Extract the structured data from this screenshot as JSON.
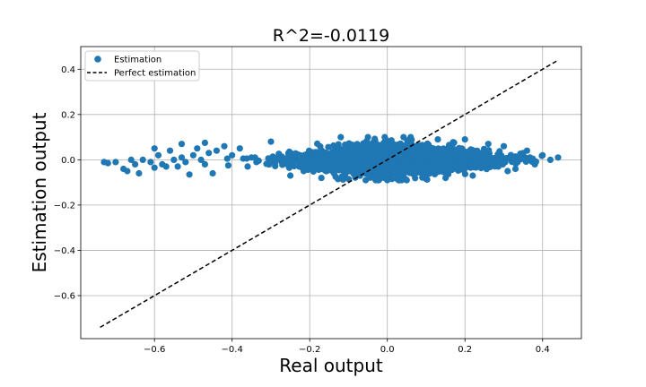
{
  "chart_data": {
    "type": "scatter",
    "title": "R^2=-0.0119",
    "xlabel": "Real output",
    "ylabel": "Estimation output",
    "xlim": [
      -0.79,
      0.5
    ],
    "ylim": [
      -0.79,
      0.5
    ],
    "xticks": [
      -0.6,
      -0.4,
      -0.2,
      0.0,
      0.2,
      0.4
    ],
    "yticks": [
      -0.6,
      -0.4,
      -0.2,
      0.0,
      0.2,
      0.4
    ],
    "xtick_labels": [
      "−0.6",
      "−0.4",
      "−0.2",
      "0.0",
      "0.2",
      "0.4"
    ],
    "ytick_labels": [
      "−0.6",
      "−0.4",
      "−0.2",
      "0.0",
      "0.2",
      "0.4"
    ],
    "grid": true,
    "legend_position": "upper-left",
    "series": [
      {
        "name": "Estimation",
        "kind": "scatter",
        "color": "#1f77b4",
        "x_range": [
          -0.74,
          0.45
        ],
        "y_center": 0.0,
        "points": [
          [
            -0.73,
            -0.01
          ],
          [
            -0.72,
            -0.015
          ],
          [
            -0.7,
            -0.01
          ],
          [
            -0.68,
            -0.04
          ],
          [
            -0.67,
            -0.05
          ],
          [
            -0.65,
            -0.02
          ],
          [
            -0.64,
            -0.06
          ],
          [
            -0.63,
            0.0
          ],
          [
            -0.61,
            -0.01
          ],
          [
            -0.6,
            -0.035
          ],
          [
            -0.59,
            0.02
          ],
          [
            -0.58,
            -0.02
          ],
          [
            -0.57,
            -0.03
          ],
          [
            -0.56,
            0.04
          ],
          [
            -0.55,
            0.0
          ],
          [
            -0.54,
            -0.03
          ],
          [
            -0.53,
            0.01
          ],
          [
            -0.52,
            -0.01
          ],
          [
            -0.5,
            0.02
          ],
          [
            -0.49,
            0.05
          ],
          [
            -0.48,
            0.0
          ],
          [
            -0.47,
            -0.02
          ],
          [
            -0.46,
            0.03
          ],
          [
            -0.45,
            -0.06
          ],
          [
            -0.44,
            0.04
          ],
          [
            -0.42,
            0.06
          ],
          [
            -0.41,
            -0.025
          ],
          [
            -0.4,
            0.02
          ],
          [
            -0.38,
            0.05
          ],
          [
            -0.36,
            -0.03
          ],
          [
            -0.35,
            0.01
          ],
          [
            -0.6,
            0.05
          ],
          [
            -0.53,
            0.07
          ],
          [
            -0.66,
            0.0
          ],
          [
            -0.51,
            -0.065
          ],
          [
            -0.47,
            0.075
          ],
          [
            -0.12,
            0.1
          ],
          [
            -0.05,
            0.1
          ],
          [
            0.06,
            0.1
          ],
          [
            0.13,
            0.09
          ],
          [
            0.2,
            0.09
          ],
          [
            0.05,
            -0.09
          ],
          [
            -0.03,
            -0.09
          ],
          [
            -0.1,
            -0.085
          ],
          [
            0.15,
            -0.08
          ],
          [
            -0.17,
            -0.08
          ],
          [
            0.22,
            -0.07
          ],
          [
            0.1,
            -0.085
          ],
          [
            0.26,
            0.07
          ],
          [
            0.3,
            0.06
          ],
          [
            0.33,
            -0.04
          ],
          [
            0.36,
            0.04
          ],
          [
            0.38,
            -0.02
          ],
          [
            0.4,
            0.02
          ],
          [
            0.42,
            0.0
          ],
          [
            0.44,
            0.01
          ],
          [
            0.35,
            0.03
          ],
          [
            0.31,
            -0.05
          ],
          [
            -0.3,
            0.08
          ],
          [
            -0.25,
            -0.07
          ]
        ]
      },
      {
        "name": "Perfect estimation",
        "kind": "line",
        "style": "dashed",
        "color": "#000000",
        "x": [
          -0.74,
          0.44
        ],
        "y": [
          -0.74,
          0.44
        ]
      }
    ]
  }
}
